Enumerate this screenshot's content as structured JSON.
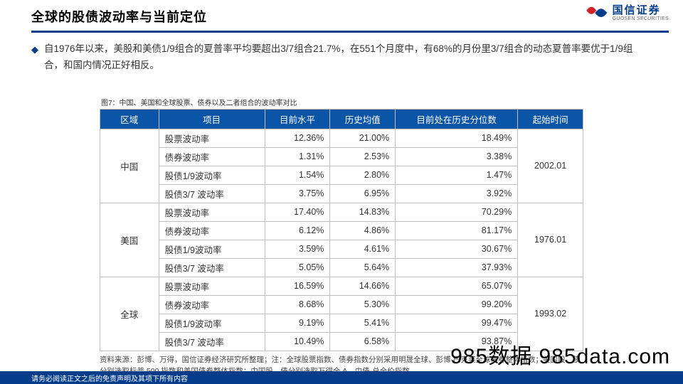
{
  "header": {
    "title": "全球的股债波动率与当前定位",
    "underline_color": "#053d8a"
  },
  "logo": {
    "brand_cn": "国信证券",
    "brand_en": "GUOSEN SECURITIES",
    "red": "#d61f26",
    "blue": "#053d8a"
  },
  "body": {
    "bullet_glyph": "◆",
    "paragraph": "自1976年以来，美股和美债1/9组合的夏普率平均要超出3/7组合21.7%，在551个月度中，有68%的月份里3/7组合的动态夏普率要优于1/9组合，和国内情况正好相反。"
  },
  "figure": {
    "caption": "图7：中国、美国和全球股票、债券以及二者组合的波动率对比",
    "columns": [
      "区域",
      "项目",
      "目前水平",
      "历史均值",
      "目前处在历史分位数",
      "起始时间"
    ],
    "header_bg": "#0a55a7",
    "header_fg": "#ffffff",
    "border_color": "#bfbfbf",
    "groups": [
      {
        "region": "中国",
        "start": "2002.01",
        "rows": [
          {
            "item": "股票波动率",
            "cur": "12.36%",
            "avg": "21.00%",
            "pct": "18.49%"
          },
          {
            "item": "债券波动率",
            "cur": "1.31%",
            "avg": "2.53%",
            "pct": "3.38%"
          },
          {
            "item": "股债1/9波动率",
            "cur": "1.54%",
            "avg": "2.80%",
            "pct": "1.47%"
          },
          {
            "item": "股债3/7 波动率",
            "cur": "3.75%",
            "avg": "6.95%",
            "pct": "3.92%"
          }
        ]
      },
      {
        "region": "美国",
        "start": "1976.01",
        "rows": [
          {
            "item": "股票波动率",
            "cur": "17.40%",
            "avg": "14.83%",
            "pct": "70.29%"
          },
          {
            "item": "债券波动率",
            "cur": "6.12%",
            "avg": "4.86%",
            "pct": "81.17%"
          },
          {
            "item": "股债1/9波动率",
            "cur": "3.59%",
            "avg": "4.61%",
            "pct": "30.67%"
          },
          {
            "item": "股债3/7 波动率",
            "cur": "5.05%",
            "avg": "5.64%",
            "pct": "37.93%"
          }
        ]
      },
      {
        "region": "全球",
        "start": "1993.02",
        "rows": [
          {
            "item": "股票波动率",
            "cur": "16.59%",
            "avg": "14.66%",
            "pct": "65.07%"
          },
          {
            "item": "债券波动率",
            "cur": "8.68%",
            "avg": "5.30%",
            "pct": "99.20%"
          },
          {
            "item": "股债1/9波动率",
            "cur": "9.19%",
            "avg": "5.41%",
            "pct": "99.47%"
          },
          {
            "item": "股债3/7 波动率",
            "cur": "10.49%",
            "avg": "6.58%",
            "pct": "93.87%"
          }
        ]
      }
    ],
    "source": "资料来源：彭博、万得，国信证券经济研究所整理；注：全球股票指数、债券指数分别采用明晟全球、彭博-巴克莱全球债券整体指数；美国股、债分别选取标普 500 指数和美国债券整体指数；中国股、债分别选取万得全 A、中债-总全价指数"
  },
  "watermark": "985数据 985data.com",
  "footer": "请务必阅读正文之后的免责声明及其项下所有内容"
}
